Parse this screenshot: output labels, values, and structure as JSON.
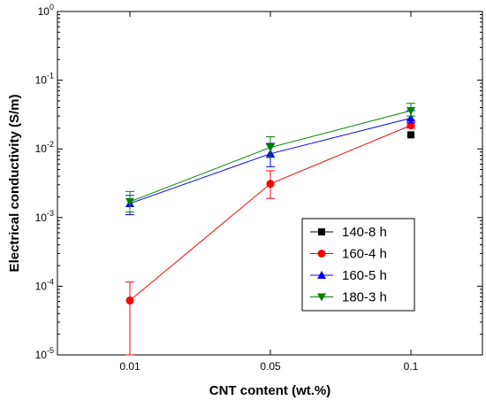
{
  "chart_data": {
    "type": "line",
    "xlabel": "CNT content (wt.%)",
    "ylabel": "Electrical conductivity (S/m)",
    "categories": [
      "0.01",
      "0.05",
      "0.1"
    ],
    "y_scale": "log",
    "ylim": [
      1e-05,
      1
    ],
    "y_ticks": [
      {
        "value": 1e-05,
        "base": "10",
        "exp": "-5"
      },
      {
        "value": 0.0001,
        "base": "10",
        "exp": "-4"
      },
      {
        "value": 0.001,
        "base": "10",
        "exp": "-3"
      },
      {
        "value": 0.01,
        "base": "10",
        "exp": "-2"
      },
      {
        "value": 0.1,
        "base": "10",
        "exp": "-1"
      },
      {
        "value": 1,
        "base": "10",
        "exp": "0"
      }
    ],
    "legend_position": "lower-right",
    "grid": false,
    "series": [
      {
        "name": "140-8 h",
        "color": "#000000",
        "marker": "square",
        "values": [
          null,
          null,
          0.016
        ],
        "err_high": [
          null,
          null,
          null
        ],
        "err_low": [
          null,
          null,
          null
        ]
      },
      {
        "name": "160-4 h",
        "color": "#ff0000",
        "marker": "circle",
        "values": [
          6.2e-05,
          0.0031,
          0.022
        ],
        "err_high": [
          0.000115,
          0.0048,
          0.026
        ],
        "err_low": [
          1e-05,
          0.0019,
          0.02
        ]
      },
      {
        "name": "160-5 h",
        "color": "#0000ff",
        "marker": "triangle-up",
        "values": [
          0.0016,
          0.0085,
          0.028
        ],
        "err_high": [
          0.0021,
          0.012,
          0.036
        ],
        "err_low": [
          0.0011,
          0.0055,
          0.024
        ]
      },
      {
        "name": "180-3 h",
        "color": "#008000",
        "marker": "triangle-down",
        "values": [
          0.0017,
          0.0105,
          0.036
        ],
        "err_high": [
          0.0024,
          0.015,
          0.046
        ],
        "err_low": [
          0.0012,
          0.0075,
          0.03
        ]
      }
    ]
  }
}
